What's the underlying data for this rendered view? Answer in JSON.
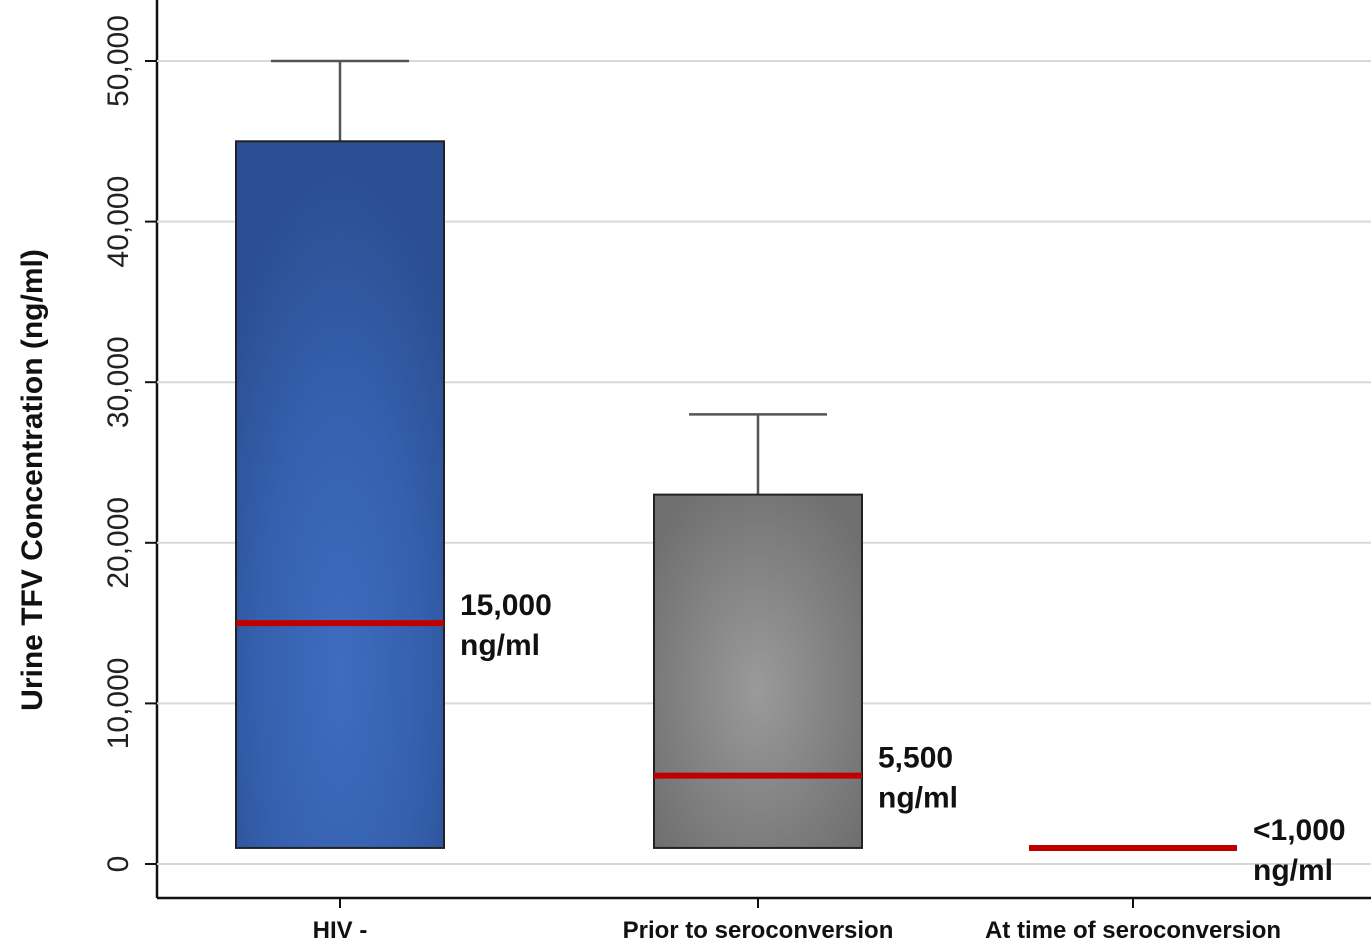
{
  "chart_data": {
    "type": "box",
    "ylabel": "Urine TFV Concentration (ng/ml)",
    "xlabel": "",
    "ylim": [
      -2000,
      52000
    ],
    "yticks": [
      0,
      10000,
      20000,
      30000,
      40000,
      50000
    ],
    "ytick_labels": [
      "0",
      "10,000",
      "20,000",
      "30,000",
      "40,000",
      "50,000"
    ],
    "grid": true,
    "categories": [
      "HIV -",
      "Prior to seroconversion",
      "At time of seroconversion"
    ],
    "boxes": [
      {
        "category": "HIV -",
        "q1": 1000,
        "median": 15000,
        "q3": 45000,
        "whisker_high": 50000,
        "color": "#3358a3",
        "annotation": [
          "15,000",
          "ng/ml"
        ]
      },
      {
        "category": "Prior to seroconversion",
        "q1": 1000,
        "median": 5500,
        "q3": 23000,
        "whisker_high": 28000,
        "color": "#8a8a8a",
        "annotation": [
          "5,500",
          "ng/ml"
        ]
      },
      {
        "category": "At time of seroconversion",
        "q1": 1000,
        "median": 1000,
        "q3": 1000,
        "whisker_high": null,
        "color": "#c00000",
        "annotation": [
          "<1,000",
          "ng/ml"
        ]
      }
    ],
    "median_color": "#c00000"
  }
}
